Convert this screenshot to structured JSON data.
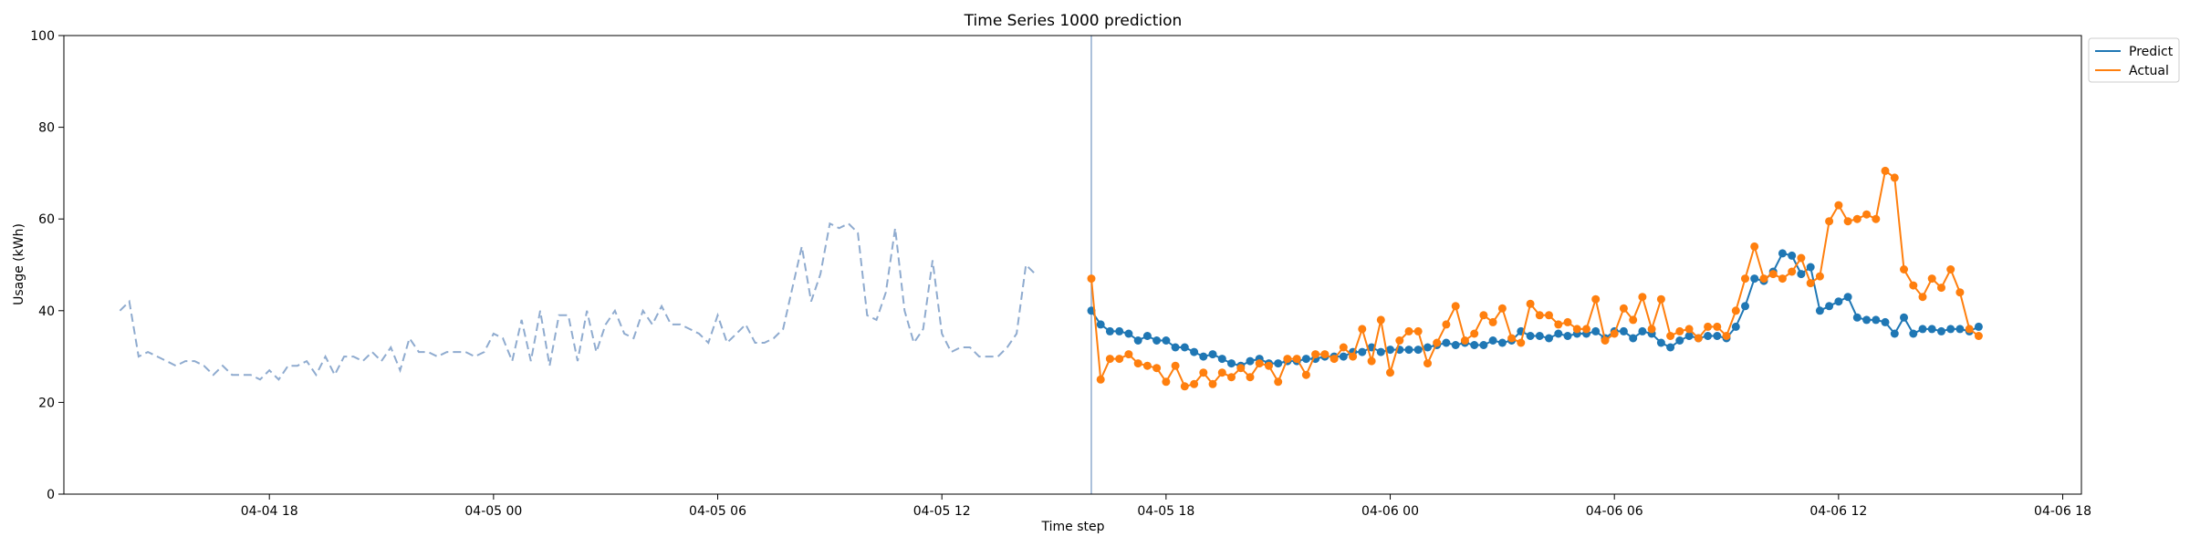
{
  "chart_data": {
    "type": "line",
    "title": "Time Series 1000 prediction",
    "xlabel": "Time step",
    "ylabel": "Usage (kWh)",
    "ylim": [
      0,
      100
    ],
    "yticks": [
      "0",
      "20",
      "40",
      "60",
      "80",
      "100"
    ],
    "xlim": [
      "2024-04-04 12:30",
      "2024-04-06 18:30"
    ],
    "xticks": [
      {
        "t": "2024-04-04 18:00",
        "label": "04-04 18"
      },
      {
        "t": "2024-04-05 00:00",
        "label": "04-05 00"
      },
      {
        "t": "2024-04-05 06:00",
        "label": "04-05 06"
      },
      {
        "t": "2024-04-05 12:00",
        "label": "04-05 12"
      },
      {
        "t": "2024-04-05 18:00",
        "label": "04-05 18"
      },
      {
        "t": "2024-04-06 00:00",
        "label": "04-06 00"
      },
      {
        "t": "2024-04-06 06:00",
        "label": "04-06 06"
      },
      {
        "t": "2024-04-06 12:00",
        "label": "04-06 12"
      },
      {
        "t": "2024-04-06 18:00",
        "label": "04-06 18"
      }
    ],
    "grid": false,
    "legend_position": "upper-right-outside",
    "cutoff": "2024-04-05 16:00",
    "history": {
      "start": "2024-04-04 14:00",
      "step_minutes": 15,
      "color": "#8fabcf",
      "style": "dashed",
      "values": [
        40,
        42,
        30,
        31,
        30,
        29,
        28,
        29,
        29,
        28,
        26,
        28,
        26,
        26,
        26,
        25,
        27,
        25,
        28,
        28,
        29,
        26,
        30,
        26,
        30,
        30,
        29,
        31,
        29,
        32,
        27,
        34,
        31,
        31,
        30,
        31,
        31,
        31,
        30,
        31,
        35,
        34,
        29,
        38,
        29,
        40,
        28,
        39,
        39,
        29,
        40,
        31,
        37,
        40,
        35,
        34,
        40,
        37,
        41,
        37,
        37,
        36,
        35,
        33,
        39,
        33,
        35,
        37,
        33,
        33,
        34,
        36,
        45,
        54,
        42,
        48,
        59,
        58,
        59,
        57,
        39,
        38,
        44,
        58,
        40,
        33,
        36,
        51,
        35,
        31,
        32,
        32,
        30,
        30,
        30,
        32,
        35,
        50,
        48
      ]
    },
    "series": [
      {
        "name": "Predict",
        "color": "#1f77b4",
        "start": "2024-04-05 16:00",
        "step_minutes": 15,
        "values": [
          40,
          37,
          35.5,
          35.5,
          35,
          33.5,
          34.5,
          33.5,
          33.5,
          32,
          32,
          31,
          30,
          30.5,
          29.5,
          28.5,
          28,
          29,
          29.5,
          28.5,
          28.5,
          29,
          29,
          29.5,
          29.5,
          30,
          30,
          30,
          31,
          31,
          32,
          31,
          31.5,
          31.5,
          31.5,
          31.5,
          32,
          32.5,
          33,
          32.5,
          33,
          32.5,
          32.5,
          33.5,
          33,
          33.5,
          35.5,
          34.5,
          34.5,
          34,
          35,
          34.5,
          35,
          35,
          35.5,
          34,
          35.5,
          35.5,
          34,
          35.5,
          35,
          33,
          32,
          33.5,
          34.5,
          34,
          34.5,
          34.5,
          34,
          36.5,
          41,
          47,
          46.5,
          48.5,
          52.5,
          52,
          48,
          49.5,
          40,
          41,
          42,
          43,
          38.5,
          38,
          38,
          37.5,
          35,
          38.5,
          35,
          36,
          36,
          35.5,
          36,
          36,
          35.5,
          36.5
        ]
      },
      {
        "name": "Actual",
        "color": "#ff7f0e",
        "start": "2024-04-05 16:00",
        "step_minutes": 15,
        "values": [
          47,
          25,
          29.5,
          29.5,
          30.5,
          28.5,
          28,
          27.5,
          24.5,
          28,
          23.5,
          24,
          26.5,
          24,
          26.5,
          25.5,
          27.5,
          25.5,
          28.5,
          28,
          24.5,
          29.5,
          29.5,
          26,
          30.5,
          30.5,
          29.5,
          32,
          30,
          36,
          29,
          38,
          26.5,
          33.5,
          35.5,
          35.5,
          28.5,
          33,
          37,
          41,
          33.5,
          35,
          39,
          37.5,
          40.5,
          34,
          33,
          41.5,
          39,
          39,
          37,
          37.5,
          36,
          36,
          42.5,
          33.5,
          35,
          40.5,
          38,
          43,
          36,
          42.5,
          34.5,
          35.5,
          36,
          34,
          36.5,
          36.5,
          34.5,
          40,
          47,
          54,
          47,
          48,
          47,
          48.5,
          51.5,
          46,
          47.5,
          59.5,
          63,
          59.5,
          60,
          61,
          60,
          70.5,
          69,
          49,
          45.5,
          43,
          47,
          45,
          49,
          44,
          36,
          34.5
        ]
      }
    ]
  }
}
